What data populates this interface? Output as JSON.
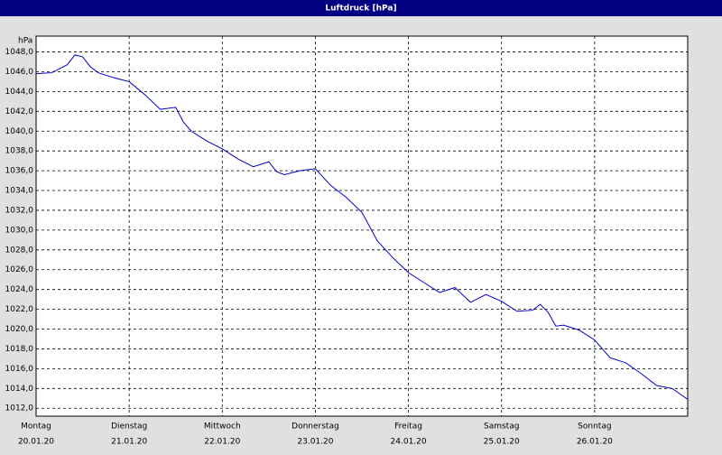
{
  "window_title": "Luftdruck [hPa]",
  "chart_data": {
    "type": "line",
    "y_unit": "hPa",
    "x": [
      0,
      4,
      8,
      10,
      12,
      14,
      16,
      20,
      24,
      28,
      32,
      36,
      38,
      40,
      44,
      48,
      52,
      56,
      60,
      62,
      64,
      68,
      72,
      76,
      80,
      84,
      88,
      92,
      96,
      100,
      104,
      108,
      112,
      116,
      120,
      124,
      128,
      130,
      132,
      134,
      136,
      140,
      144,
      148,
      152,
      156,
      160,
      164,
      168
    ],
    "series": [
      {
        "name": "Luftdruck",
        "color": "#0000cc",
        "values": [
          1045.8,
          1045.9,
          1046.7,
          1047.7,
          1047.5,
          1046.5,
          1045.9,
          1045.4,
          1045.0,
          1043.7,
          1042.2,
          1042.4,
          1040.9,
          1040.0,
          1039.0,
          1038.2,
          1037.2,
          1036.4,
          1036.9,
          1035.9,
          1035.6,
          1036.0,
          1036.2,
          1034.5,
          1033.3,
          1031.8,
          1028.9,
          1027.2,
          1025.7,
          1024.7,
          1023.7,
          1024.2,
          1022.7,
          1023.5,
          1022.8,
          1021.8,
          1021.9,
          1022.5,
          1021.7,
          1020.3,
          1020.4,
          1019.9,
          1018.9,
          1017.1,
          1016.6,
          1015.5,
          1014.3,
          1014.0,
          1012.9
        ]
      }
    ],
    "xlim": [
      0,
      168
    ],
    "xticks": [
      {
        "value": 0,
        "label": "Montag"
      },
      {
        "value": 24,
        "label": "Dienstag"
      },
      {
        "value": 48,
        "label": "Mittwoch"
      },
      {
        "value": 72,
        "label": "Donnerstag"
      },
      {
        "value": 96,
        "label": "Freitag"
      },
      {
        "value": 120,
        "label": "Samstag"
      },
      {
        "value": 144,
        "label": "Sonntag"
      }
    ],
    "xtick_dates": [
      "20.01.20",
      "21.01.20",
      "22.01.20",
      "23.01.20",
      "24.01.20",
      "25.01.20",
      "26.01.20"
    ],
    "ylim": [
      1011.2,
      1049.6
    ],
    "yticks": [
      {
        "value": 1012,
        "label": "1012,0"
      },
      {
        "value": 1014,
        "label": "1014,0"
      },
      {
        "value": 1016,
        "label": "1016,0"
      },
      {
        "value": 1018,
        "label": "1018,0"
      },
      {
        "value": 1020,
        "label": "1020,0"
      },
      {
        "value": 1022,
        "label": "1022,0"
      },
      {
        "value": 1024,
        "label": "1024,0"
      },
      {
        "value": 1026,
        "label": "1026,0"
      },
      {
        "value": 1028,
        "label": "1028,0"
      },
      {
        "value": 1030,
        "label": "1030,0"
      },
      {
        "value": 1032,
        "label": "1032,0"
      },
      {
        "value": 1034,
        "label": "1034,0"
      },
      {
        "value": 1036,
        "label": "1036,0"
      },
      {
        "value": 1038,
        "label": "1038,0"
      },
      {
        "value": 1040,
        "label": "1040,0"
      },
      {
        "value": 1042,
        "label": "1042,0"
      },
      {
        "value": 1044,
        "label": "1044,0"
      },
      {
        "value": 1046,
        "label": "1046,0"
      },
      {
        "value": 1048,
        "label": "1048,0"
      }
    ],
    "grid": true
  }
}
